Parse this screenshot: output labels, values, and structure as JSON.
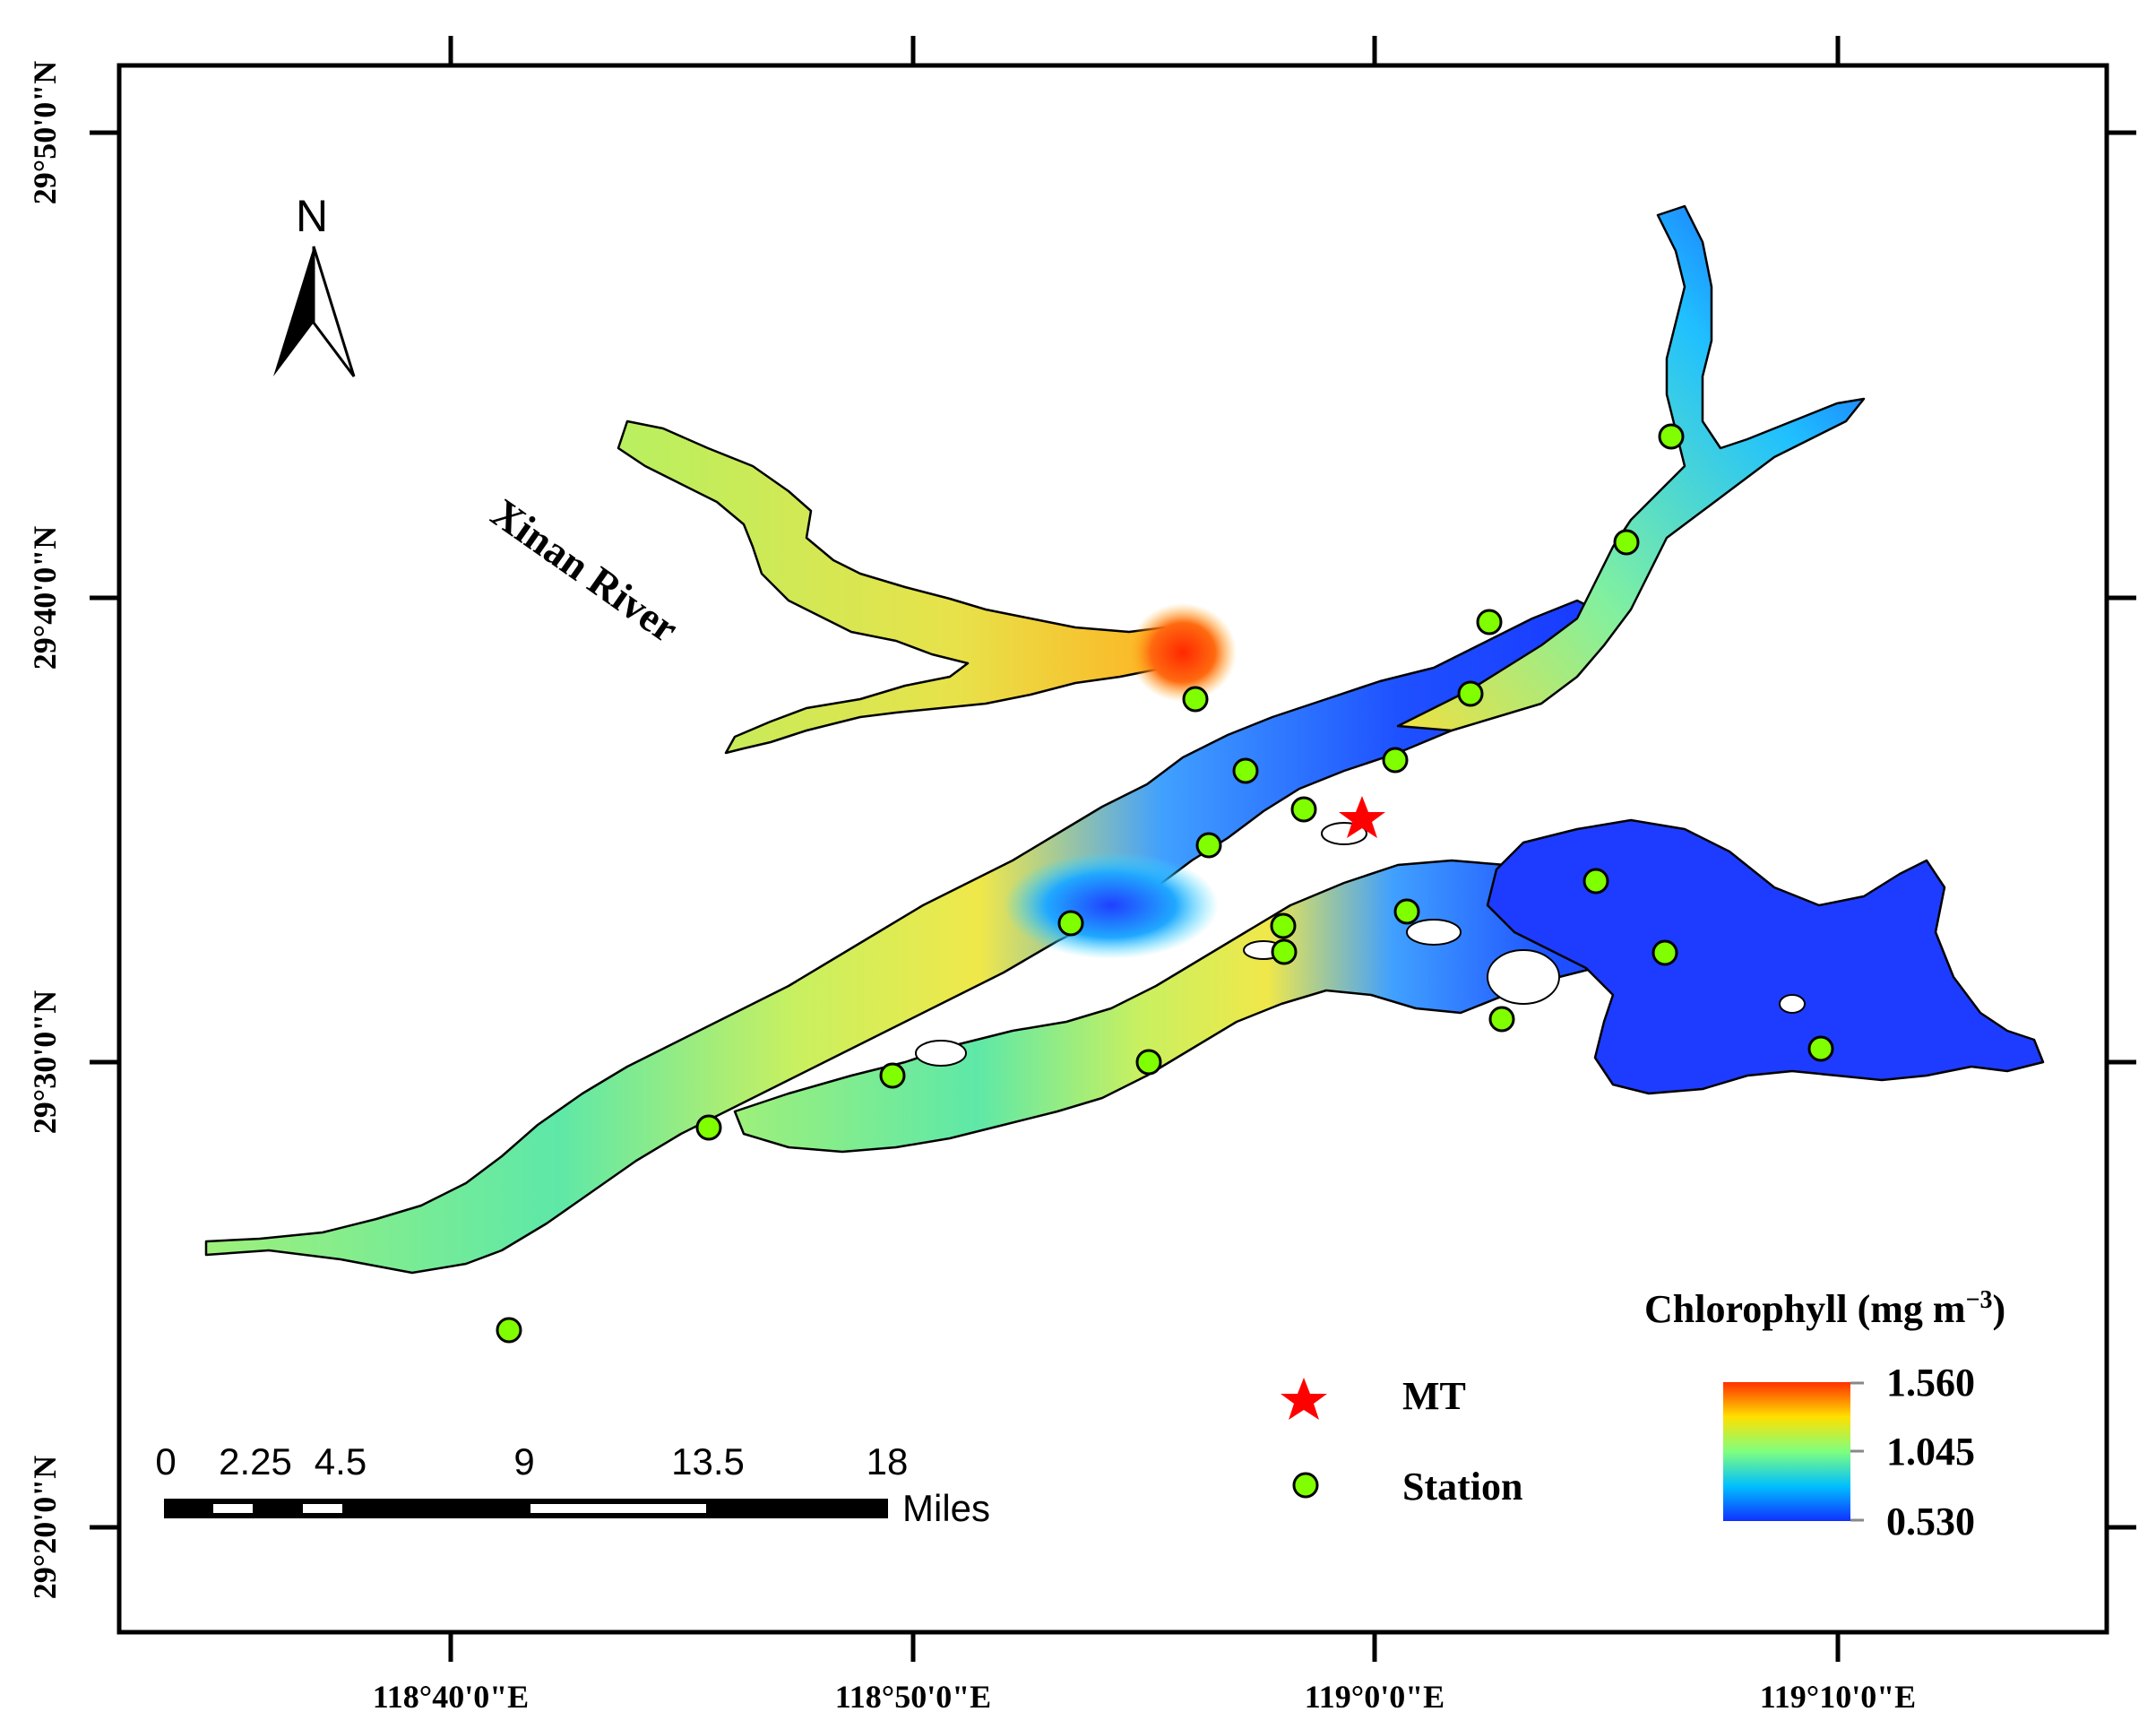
{
  "map": {
    "axes": {
      "lon_ticks": [
        "118°40'0\"E",
        "118°50'0\"E",
        "119°0'0\"E",
        "119°10'0\"E"
      ],
      "lat_ticks": [
        "29°50'0\"N",
        "29°40'0\"N",
        "29°30'0\"N",
        "29°20'0\"N"
      ]
    },
    "north_arrow": {
      "label": "N",
      "icon": "north-arrow-icon"
    },
    "river_label": "Xinan River",
    "legend": {
      "symbols": [
        {
          "name": "MT",
          "icon": "red-star-icon",
          "color": "#ff0000"
        },
        {
          "name": "Station",
          "icon": "green-circle-icon",
          "color": "#7fff00"
        }
      ],
      "colorbar": {
        "title": "Chlorophyll (mg m",
        "title_sup": "−3",
        "title_close": ")",
        "max": "1.560",
        "mid": "1.045",
        "min": "0.530",
        "colors": [
          "#1030ff",
          "#00bfff",
          "#7fff7f",
          "#ffe000",
          "#ff3000"
        ]
      }
    },
    "scale_bar": {
      "labels": [
        "0",
        "2.25",
        "4.5",
        "9",
        "13.5",
        "18"
      ],
      "unit": "Miles"
    }
  }
}
